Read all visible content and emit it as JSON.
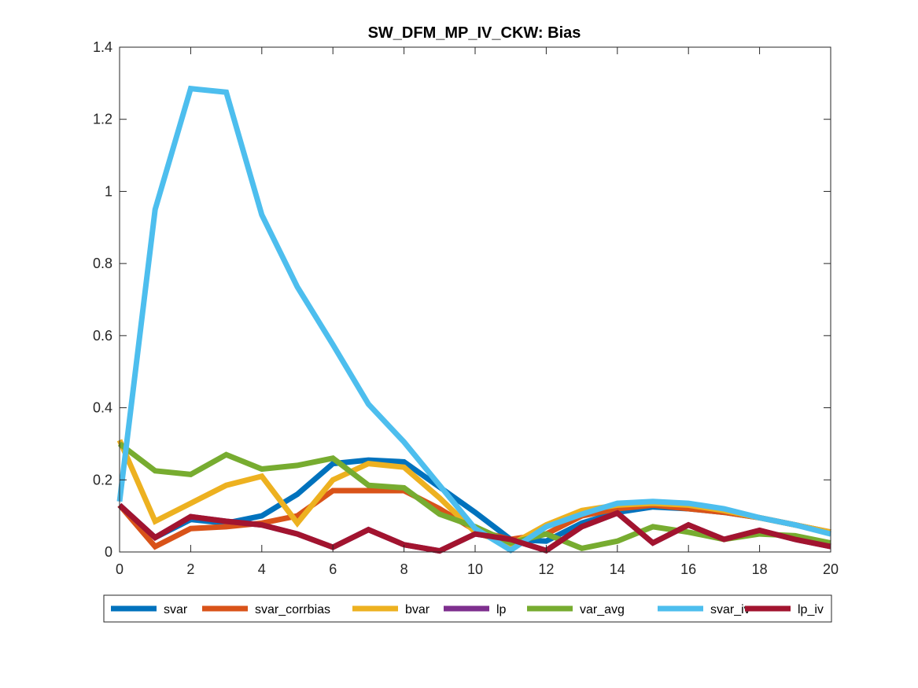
{
  "chart_data": {
    "type": "line",
    "title": "SW_DFM_MP_IV_CKW: Bias",
    "xlabel": "",
    "ylabel": "",
    "xlim": [
      0,
      20
    ],
    "ylim": [
      0,
      1.4
    ],
    "x_ticks": [
      "0",
      "2",
      "4",
      "6",
      "8",
      "10",
      "12",
      "14",
      "16",
      "18",
      "20"
    ],
    "y_ticks": [
      "0",
      "0.2",
      "0.4",
      "0.6",
      "0.8",
      "1",
      "1.2",
      "1.4"
    ],
    "x_tick_values": [
      0,
      2,
      4,
      6,
      8,
      10,
      12,
      14,
      16,
      18,
      20
    ],
    "y_tick_values": [
      0,
      0.2,
      0.4,
      0.6,
      0.8,
      1.0,
      1.2,
      1.4
    ],
    "grid": false,
    "legend_placement": "bottom-outside",
    "x": [
      0,
      1,
      2,
      3,
      4,
      5,
      6,
      7,
      8,
      9,
      10,
      11,
      12,
      13,
      14,
      15,
      16,
      17,
      18,
      19,
      20
    ],
    "series": [
      {
        "name": "svar",
        "color": "#0072BD",
        "values": [
          0.13,
          0.04,
          0.09,
          0.08,
          0.1,
          0.16,
          0.245,
          0.255,
          0.25,
          0.18,
          0.11,
          0.035,
          0.03,
          0.08,
          0.11,
          0.125,
          0.12,
          0.11,
          0.095,
          0.075,
          0.055
        ]
      },
      {
        "name": "svar_corrbias",
        "color": "#D95319",
        "values": [
          0.13,
          0.015,
          0.065,
          0.07,
          0.08,
          0.1,
          0.17,
          0.17,
          0.17,
          0.12,
          0.06,
          0.035,
          0.05,
          0.1,
          0.12,
          0.13,
          0.12,
          0.11,
          0.095,
          0.075,
          0.055
        ]
      },
      {
        "name": "bvar",
        "color": "#EDB120",
        "values": [
          0.31,
          0.085,
          0.135,
          0.185,
          0.21,
          0.08,
          0.2,
          0.245,
          0.235,
          0.15,
          0.055,
          0.02,
          0.075,
          0.115,
          0.13,
          0.135,
          0.13,
          0.115,
          0.095,
          0.075,
          0.055
        ]
      },
      {
        "name": "lp",
        "color": "#7E2F8E",
        "values": [
          0.13,
          0.04,
          0.098,
          0.085,
          0.075,
          0.05,
          0.013,
          0.062,
          0.02,
          0.003,
          0.05,
          0.035,
          0.004,
          0.07,
          0.108,
          0.025,
          0.075,
          0.035,
          0.06,
          0.035,
          0.015
        ]
      },
      {
        "name": "var_avg",
        "color": "#77AC30",
        "values": [
          0.3,
          0.225,
          0.215,
          0.27,
          0.23,
          0.24,
          0.26,
          0.185,
          0.178,
          0.105,
          0.07,
          0.025,
          0.05,
          0.01,
          0.03,
          0.07,
          0.055,
          0.035,
          0.05,
          0.045,
          0.025
        ]
      },
      {
        "name": "svar_iv",
        "color": "#4DBEEE",
        "values": [
          0.14,
          0.95,
          1.285,
          1.275,
          0.935,
          0.735,
          0.575,
          0.41,
          0.305,
          0.185,
          0.065,
          0.005,
          0.07,
          0.105,
          0.135,
          0.14,
          0.135,
          0.12,
          0.095,
          0.075,
          0.05
        ]
      },
      {
        "name": "lp_iv",
        "color": "#A2142F",
        "values": [
          0.13,
          0.04,
          0.098,
          0.085,
          0.075,
          0.05,
          0.013,
          0.062,
          0.02,
          0.003,
          0.05,
          0.035,
          0.004,
          0.07,
          0.108,
          0.025,
          0.075,
          0.035,
          0.06,
          0.035,
          0.015
        ]
      }
    ]
  }
}
